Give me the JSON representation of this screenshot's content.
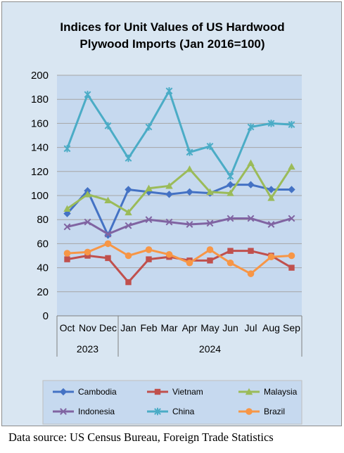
{
  "chart_data": {
    "type": "line",
    "title": "Indices for Unit Values of US Hardwood Plywood Imports (Jan 2016=100)",
    "title_lines": [
      "Indices for Unit Values of US Hardwood",
      "Plywood Imports (Jan 2016=100)"
    ],
    "categories": [
      "Oct",
      "Nov",
      "Dec",
      "Jan",
      "Feb",
      "Mar",
      "Apr",
      "May",
      "Jun",
      "Jul",
      "Aug",
      "Sep"
    ],
    "year_groups": [
      {
        "label": "2023",
        "count": 3
      },
      {
        "label": "2024",
        "count": 9
      }
    ],
    "ylim": [
      0,
      200
    ],
    "yticks": [
      0,
      20,
      40,
      60,
      80,
      100,
      120,
      140,
      160,
      180,
      200
    ],
    "grid": true,
    "legend_position": "bottom",
    "series": [
      {
        "name": "Cambodia",
        "color": "#4472c4",
        "marker": "diamond",
        "values": [
          85,
          104,
          67,
          105,
          103,
          101,
          103,
          102,
          109,
          109,
          105,
          105
        ]
      },
      {
        "name": "Vietnam",
        "color": "#c0504d",
        "marker": "square",
        "values": [
          47,
          50,
          48,
          28,
          47,
          49,
          46,
          46,
          54,
          54,
          50,
          40
        ]
      },
      {
        "name": "Malaysia",
        "color": "#9bbb59",
        "marker": "triangle",
        "values": [
          89,
          101,
          96,
          86,
          106,
          108,
          122,
          103,
          102,
          127,
          98,
          124
        ]
      },
      {
        "name": "Indonesia",
        "color": "#8064a2",
        "marker": "x",
        "values": [
          74,
          78,
          68,
          75,
          80,
          78,
          76,
          77,
          81,
          81,
          76,
          81
        ]
      },
      {
        "name": "China",
        "color": "#4bacc6",
        "marker": "star",
        "values": [
          139,
          184,
          158,
          131,
          157,
          187,
          136,
          141,
          116,
          157,
          160,
          159
        ]
      },
      {
        "name": "Brazil",
        "color": "#f79646",
        "marker": "circle",
        "values": [
          52,
          53,
          60,
          50,
          55,
          51,
          44,
          55,
          44,
          35,
          49,
          50
        ]
      }
    ]
  },
  "source_note": "Data source: US Census Bureau, Foreign Trade Statistics"
}
